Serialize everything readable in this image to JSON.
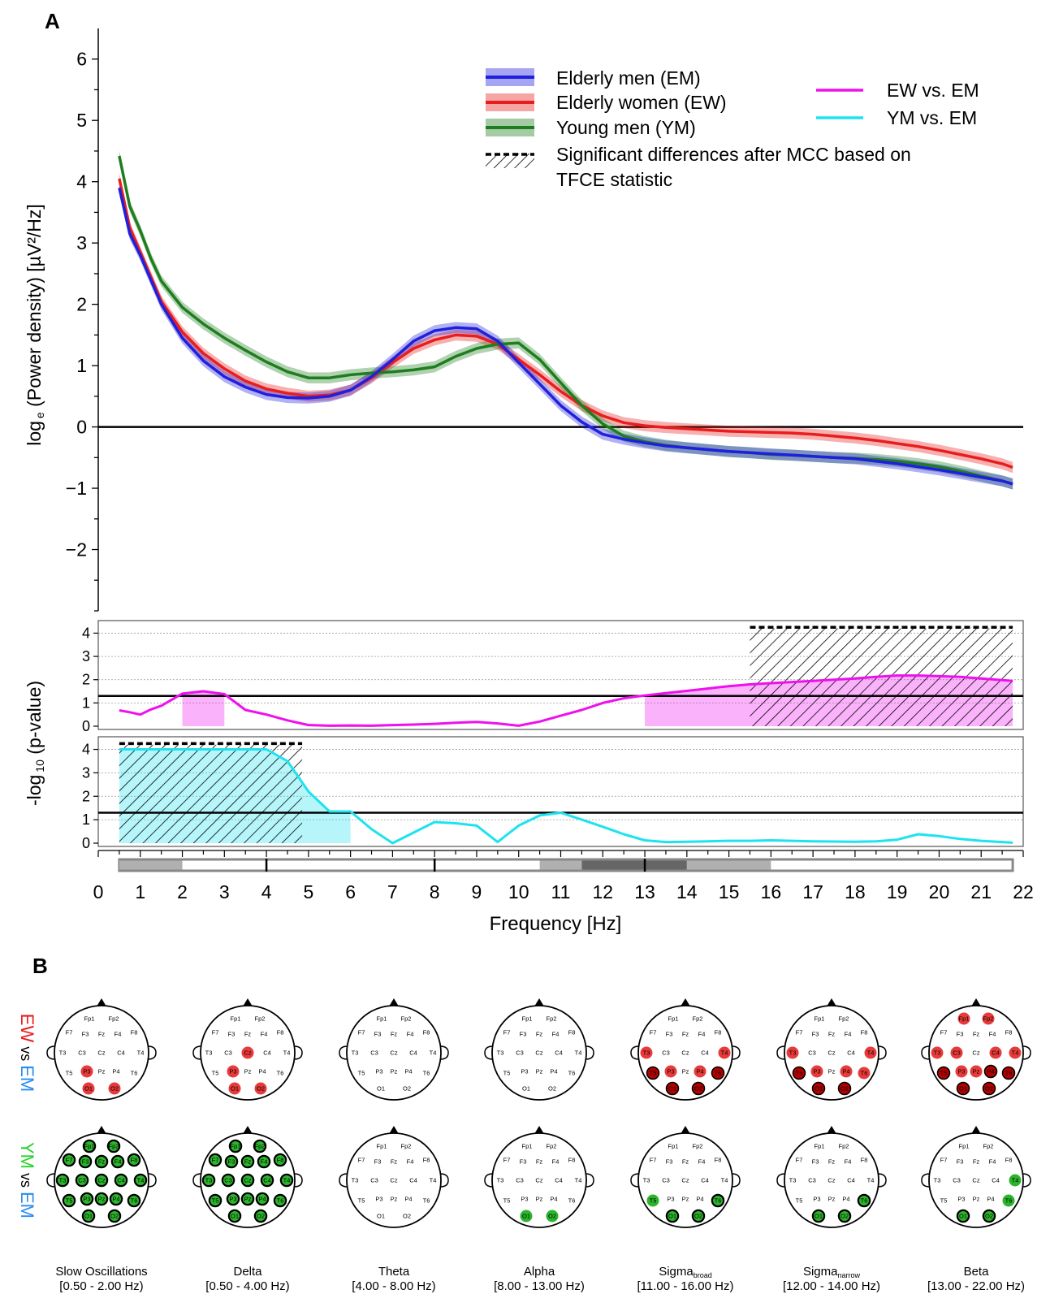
{
  "panel_a_label": "A",
  "panel_b_label": "B",
  "legend": {
    "em": "Elderly men (EM)",
    "ew": "Elderly women (EW)",
    "ym": "Young men (YM)",
    "sig_line1": "Significant differences after MCC based on",
    "sig_line2": "TFCE statistic",
    "ew_vs_em": "EW vs. EM",
    "ym_vs_em": "YM vs. EM"
  },
  "colors": {
    "em": "#1f1fdd",
    "ew": "#e81d1d",
    "ym": "#1e7d1e",
    "ew_vs_em": "#ee10ee",
    "ym_vs_em": "#1de3ef",
    "scalp_red": "#e83a3a",
    "scalp_green": "#2cb52c"
  },
  "chart_data": [
    {
      "type": "line",
      "ylabel_main": "log",
      "ylabel_sub": "e",
      "ylabel_rest": " (Power density) [µV²/Hz]",
      "yticks": [
        "6",
        "5",
        "4",
        "3",
        "2",
        "1",
        "0",
        "−1",
        "−2"
      ],
      "ylim": [
        -3.0,
        6.5
      ],
      "xlim": [
        0,
        22
      ],
      "x": [
        0.5,
        0.75,
        1,
        1.25,
        1.5,
        2,
        2.5,
        3,
        3.5,
        4,
        4.5,
        5,
        5.5,
        6,
        6.5,
        7,
        7.5,
        8,
        8.5,
        9,
        9.5,
        10,
        10.5,
        11,
        11.5,
        12,
        12.5,
        13,
        13.5,
        14,
        14.5,
        15,
        15.5,
        16,
        16.5,
        17,
        17.5,
        18,
        18.5,
        19,
        19.5,
        20,
        20.5,
        21,
        21.5,
        21.75
      ],
      "series": [
        {
          "name": "Elderly men (EM)",
          "values": [
            3.9,
            3.15,
            2.8,
            2.4,
            2.0,
            1.45,
            1.08,
            0.82,
            0.65,
            0.53,
            0.48,
            0.47,
            0.5,
            0.6,
            0.82,
            1.1,
            1.4,
            1.57,
            1.62,
            1.6,
            1.4,
            1.05,
            0.7,
            0.35,
            0.08,
            -0.12,
            -0.2,
            -0.26,
            -0.31,
            -0.34,
            -0.37,
            -0.4,
            -0.42,
            -0.44,
            -0.46,
            -0.48,
            -0.5,
            -0.52,
            -0.56,
            -0.6,
            -0.65,
            -0.7,
            -0.76,
            -0.82,
            -0.88,
            -0.93
          ],
          "band": 0.09
        },
        {
          "name": "Elderly women (EW)",
          "values": [
            4.05,
            3.25,
            2.85,
            2.45,
            2.05,
            1.55,
            1.2,
            0.95,
            0.75,
            0.62,
            0.55,
            0.5,
            0.52,
            0.6,
            0.8,
            1.05,
            1.28,
            1.42,
            1.5,
            1.48,
            1.35,
            1.1,
            0.85,
            0.58,
            0.35,
            0.18,
            0.07,
            0.02,
            -0.01,
            -0.03,
            -0.05,
            -0.07,
            -0.08,
            -0.09,
            -0.1,
            -0.12,
            -0.15,
            -0.18,
            -0.22,
            -0.27,
            -0.32,
            -0.38,
            -0.45,
            -0.52,
            -0.6,
            -0.66
          ],
          "band": 0.09
        },
        {
          "name": "Young men (YM)",
          "values": [
            4.42,
            3.6,
            3.2,
            2.75,
            2.38,
            1.95,
            1.68,
            1.45,
            1.25,
            1.06,
            0.9,
            0.8,
            0.8,
            0.85,
            0.88,
            0.9,
            0.93,
            0.98,
            1.15,
            1.28,
            1.35,
            1.37,
            1.1,
            0.72,
            0.35,
            0.05,
            -0.15,
            -0.24,
            -0.3,
            -0.34,
            -0.37,
            -0.4,
            -0.42,
            -0.45,
            -0.46,
            -0.48,
            -0.5,
            -0.51,
            -0.53,
            -0.56,
            -0.6,
            -0.65,
            -0.72,
            -0.8,
            -0.88,
            -0.93
          ],
          "band": 0.09
        }
      ]
    },
    {
      "type": "line",
      "ylabel_main": "-log",
      "ylabel_sub": "10",
      "ylabel_rest": " (p-value)",
      "yticks_top": [
        "4",
        "3",
        "2",
        "1",
        "0"
      ],
      "yticks_bottom": [
        "4",
        "3",
        "2",
        "1",
        "0"
      ],
      "ylim": [
        0,
        4.4
      ],
      "threshold": 1.3,
      "x": [
        0.5,
        0.75,
        1,
        1.25,
        1.5,
        2,
        2.5,
        3,
        3.5,
        4,
        4.5,
        5,
        5.5,
        6,
        6.5,
        7,
        7.5,
        8,
        8.5,
        9,
        9.5,
        10,
        10.5,
        11,
        11.5,
        12,
        12.5,
        13,
        13.5,
        14,
        14.5,
        15,
        15.5,
        16,
        16.5,
        17,
        17.5,
        18,
        18.5,
        19,
        19.5,
        20,
        20.5,
        21,
        21.5,
        21.75
      ],
      "ew_vs_em": [
        0.68,
        0.6,
        0.5,
        0.72,
        0.88,
        1.4,
        1.5,
        1.38,
        0.7,
        0.5,
        0.25,
        0.05,
        0.02,
        0.03,
        0.02,
        0.05,
        0.07,
        0.1,
        0.15,
        0.18,
        0.12,
        0.02,
        0.2,
        0.45,
        0.7,
        1.0,
        1.2,
        1.32,
        1.42,
        1.52,
        1.62,
        1.72,
        1.8,
        1.85,
        1.9,
        1.95,
        2.0,
        2.05,
        2.12,
        2.18,
        2.18,
        2.15,
        2.12,
        2.05,
        1.98,
        1.95
      ],
      "ym_vs_em": [
        4.0,
        4.0,
        4.0,
        4.0,
        4.0,
        4.0,
        4.0,
        4.0,
        4.0,
        4.0,
        3.5,
        2.2,
        1.35,
        1.35,
        0.6,
        0.0,
        0.45,
        0.9,
        0.85,
        0.75,
        0.05,
        0.75,
        1.18,
        1.3,
        1.0,
        0.7,
        0.38,
        0.12,
        0.05,
        0.06,
        0.08,
        0.1,
        0.1,
        0.12,
        0.1,
        0.08,
        0.07,
        0.06,
        0.08,
        0.15,
        0.38,
        0.3,
        0.18,
        0.1,
        0.05,
        0.02
      ],
      "ew_shade": [
        [
          2.0,
          3.0
        ],
        [
          13.0,
          21.75
        ]
      ],
      "ew_sig": [
        15.5,
        21.75
      ],
      "ym_shade": [
        [
          0.5,
          6.0
        ]
      ],
      "ym_sig": [
        0.5,
        4.85
      ],
      "xticks": [
        "0",
        "1",
        "2",
        "3",
        "4",
        "5",
        "6",
        "7",
        "8",
        "9",
        "10",
        "11",
        "12",
        "13",
        "14",
        "15",
        "16",
        "17",
        "18",
        "19",
        "20",
        "21",
        "22"
      ],
      "xlabel": "Frequency [Hz]"
    }
  ],
  "band_bar": {
    "light": [
      [
        0.5,
        2.0
      ],
      [
        10.5,
        11.5
      ],
      [
        14.0,
        16.0
      ]
    ],
    "dark": [
      [
        11.5,
        14.0
      ]
    ],
    "ticks": [
      4,
      8,
      13
    ]
  },
  "scalp": {
    "row_labels": [
      {
        "a": "EW",
        "vs": " vs ",
        "b": "EM"
      },
      {
        "a": "YM",
        "vs": " vs ",
        "b": "EM"
      }
    ],
    "bands": [
      {
        "name": "Slow Oscillations",
        "sub": "",
        "range": "[0.50 - 2.00 Hz)"
      },
      {
        "name": "Delta",
        "sub": "",
        "range": "[0.50 - 4.00 Hz)"
      },
      {
        "name": "Theta",
        "sub": "",
        "range": "[4.00 - 8.00 Hz)"
      },
      {
        "name": "Alpha",
        "sub": "",
        "range": "[8.00 - 13.00 Hz)"
      },
      {
        "name": "Sigma",
        "sub": "broad",
        "range": "[11.00 - 16.00 Hz)"
      },
      {
        "name": "Sigma",
        "sub": "narrow",
        "range": "[12.00 - 14.00 Hz)"
      },
      {
        "name": "Beta",
        "sub": "",
        "range": "[13.00 - 22.00 Hz)"
      }
    ],
    "electrodes": [
      "Fp1",
      "Fp2",
      "F7",
      "F3",
      "Fz",
      "F4",
      "F8",
      "T3",
      "C3",
      "Cz",
      "C4",
      "T4",
      "T5",
      "P3",
      "Pz",
      "P4",
      "T6",
      "O1",
      "O2"
    ],
    "ew_vs_em": [
      {
        "light": [
          "P3",
          "O1",
          "O2"
        ],
        "dark": []
      },
      {
        "light": [
          "Cz",
          "P3",
          "O1",
          "O2"
        ],
        "dark": []
      },
      {
        "light": [],
        "dark": []
      },
      {
        "light": [],
        "dark": []
      },
      {
        "light": [
          "T3",
          "T4",
          "P3",
          "P4"
        ],
        "dark": [
          "T5",
          "T6",
          "O1",
          "O2"
        ]
      },
      {
        "light": [
          "T3",
          "T4",
          "P3",
          "P4",
          "T6"
        ],
        "dark": [
          "T5",
          "O1",
          "O2"
        ]
      },
      {
        "light": [
          "Fp1",
          "Fp2",
          "T3",
          "C3",
          "C4",
          "T4",
          "P3",
          "Pz"
        ],
        "dark": [
          "T5",
          "P4",
          "T6",
          "O1",
          "O2"
        ]
      }
    ],
    "ym_vs_em": [
      {
        "light": [],
        "dark": [
          "Fp1",
          "Fp2",
          "F7",
          "F3",
          "Fz",
          "F4",
          "F8",
          "T3",
          "C3",
          "Cz",
          "C4",
          "T4",
          "T5",
          "P3",
          "Pz",
          "P4",
          "T6",
          "O1",
          "O2"
        ]
      },
      {
        "light": [],
        "dark": [
          "Fp1",
          "Fp2",
          "F7",
          "F3",
          "Fz",
          "F4",
          "F8",
          "T3",
          "C3",
          "Cz",
          "C4",
          "T4",
          "T5",
          "P3",
          "Pz",
          "P4",
          "T6",
          "O1",
          "O2"
        ]
      },
      {
        "light": [],
        "dark": []
      },
      {
        "light": [
          "O1",
          "O2"
        ],
        "dark": []
      },
      {
        "light": [
          "T5"
        ],
        "dark": [
          "T6",
          "O1",
          "O2"
        ]
      },
      {
        "light": [],
        "dark": [
          "T6",
          "O1",
          "O2"
        ]
      },
      {
        "light": [
          "T4",
          "T6"
        ],
        "dark": [
          "O1",
          "O2"
        ]
      }
    ]
  }
}
